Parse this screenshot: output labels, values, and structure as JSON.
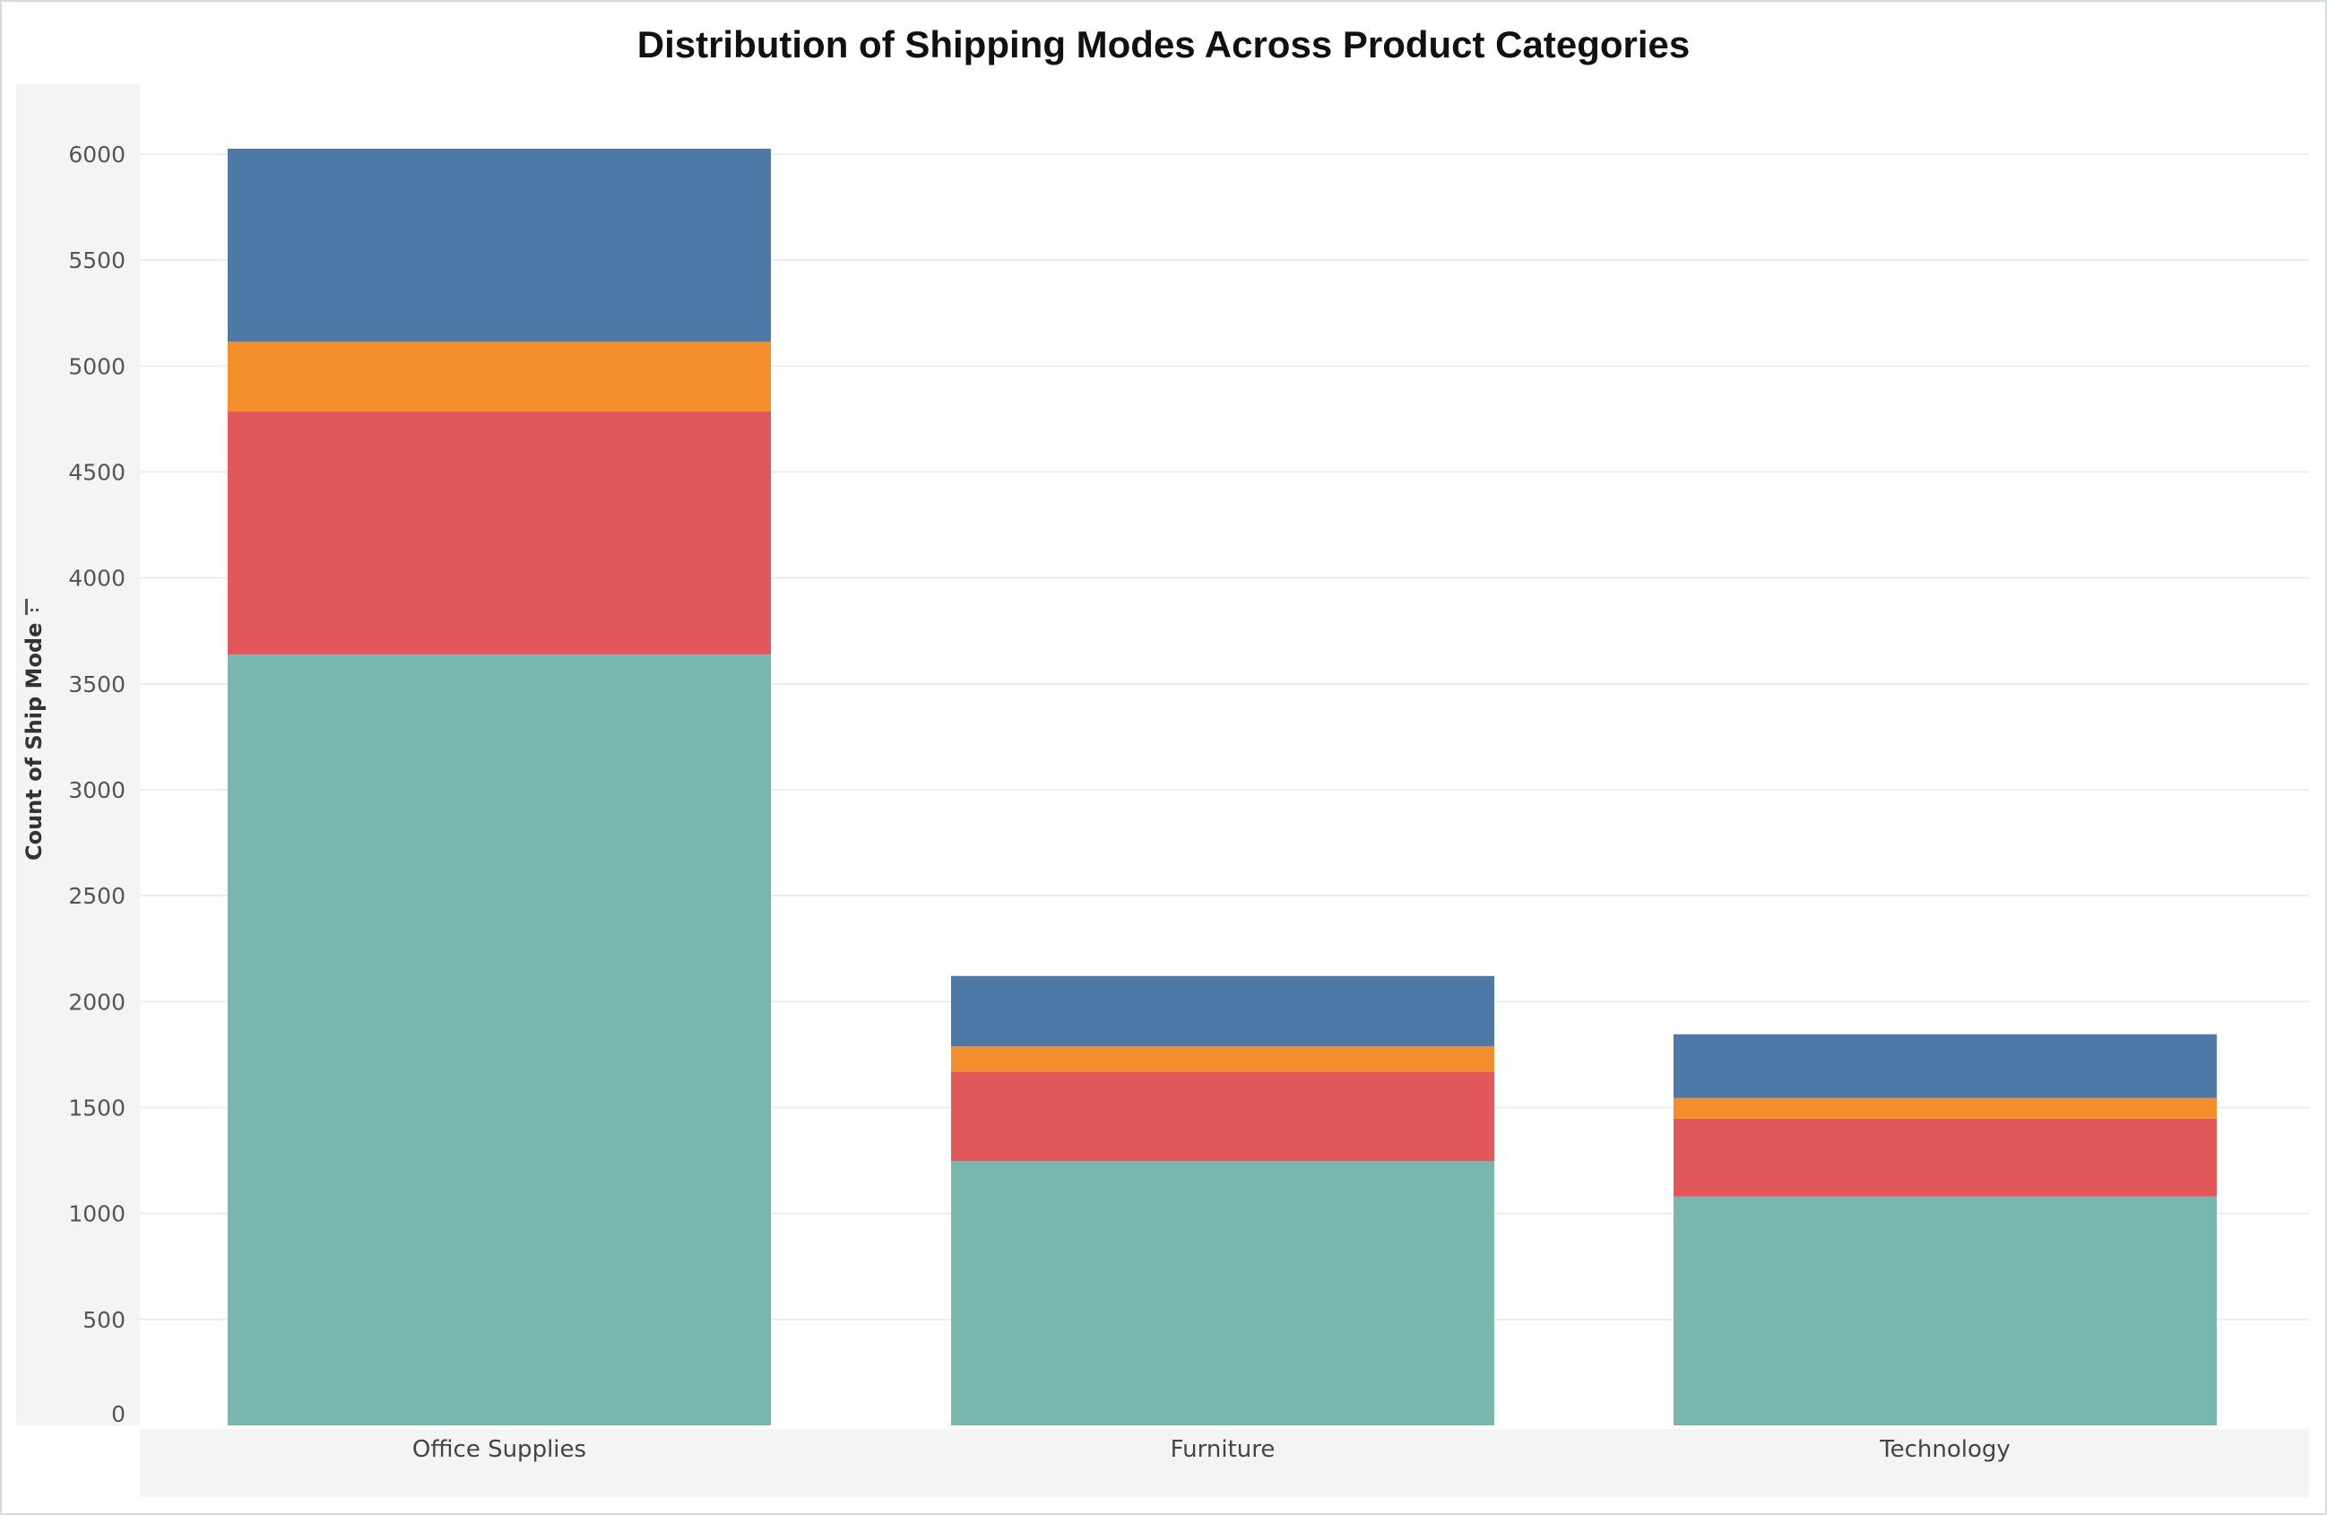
{
  "chart_data": {
    "type": "bar",
    "stacked": true,
    "title": "Distribution of Shipping Modes Across Product Categories",
    "xlabel": "",
    "ylabel": "Count of Ship Mode",
    "ylim": [
      0,
      6250
    ],
    "yticks": [
      0,
      500,
      1000,
      1500,
      2000,
      2500,
      3000,
      3500,
      4000,
      4500,
      5000,
      5500,
      6000
    ],
    "grid": true,
    "legend": "none",
    "categories": [
      "Office Supplies",
      "Furniture",
      "Technology"
    ],
    "series": [
      {
        "color": "#7ab6b0",
        "values": [
          3638,
          1248,
          1080
        ]
      },
      {
        "color": "#e1575a",
        "values": [
          1148,
          422,
          368
        ]
      },
      {
        "color": "#f28e2b",
        "values": [
          329,
          119,
          97
        ]
      },
      {
        "color": "#4e79a7",
        "values": [
          911,
          332,
          301
        ]
      }
    ]
  },
  "colors": {
    "axis_panel": "#f4f4f4",
    "gridline": "#ececec"
  },
  "icons": {
    "ylabel_sort": "sort-icon"
  }
}
